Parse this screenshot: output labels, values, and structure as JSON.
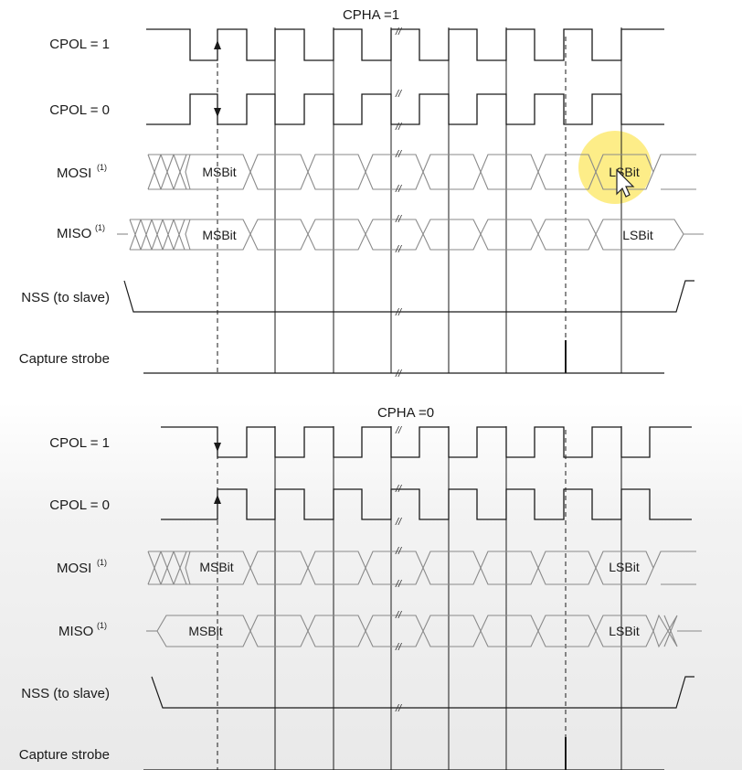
{
  "diagrams": [
    {
      "title": "CPHA =1",
      "signals": [
        {
          "name": "cpol1",
          "label": "CPOL = 1",
          "sup": ""
        },
        {
          "name": "cpol0",
          "label": "CPOL = 0",
          "sup": ""
        },
        {
          "name": "mosi",
          "label": "MOSI",
          "sup": "(1)"
        },
        {
          "name": "miso",
          "label": "MISO",
          "sup": "(1)"
        },
        {
          "name": "nss",
          "label": "NSS (to slave)",
          "sup": ""
        },
        {
          "name": "strobe",
          "label": "Capture strobe",
          "sup": ""
        }
      ],
      "bits": {
        "msb": "MSBit",
        "lsb": "LSBit"
      }
    },
    {
      "title": "CPHA =0",
      "signals": [
        {
          "name": "cpol1",
          "label": "CPOL = 1",
          "sup": ""
        },
        {
          "name": "cpol0",
          "label": "CPOL = 0",
          "sup": ""
        },
        {
          "name": "mosi",
          "label": "MOSI",
          "sup": "(1)"
        },
        {
          "name": "miso",
          "label": "MISO",
          "sup": "(1)"
        },
        {
          "name": "nss",
          "label": "NSS (to slave)",
          "sup": ""
        },
        {
          "name": "strobe",
          "label": "Capture strobe",
          "sup": ""
        }
      ],
      "bits": {
        "msb": "MSBit",
        "lsb": "LSBit"
      }
    }
  ],
  "break_mark": "//",
  "colors": {
    "line": "#1a1a1a",
    "bus": "#8a8a8a",
    "highlight": "#fde96a"
  },
  "cursor": {
    "icon": "arrow-cursor-icon",
    "highlighted": true
  }
}
